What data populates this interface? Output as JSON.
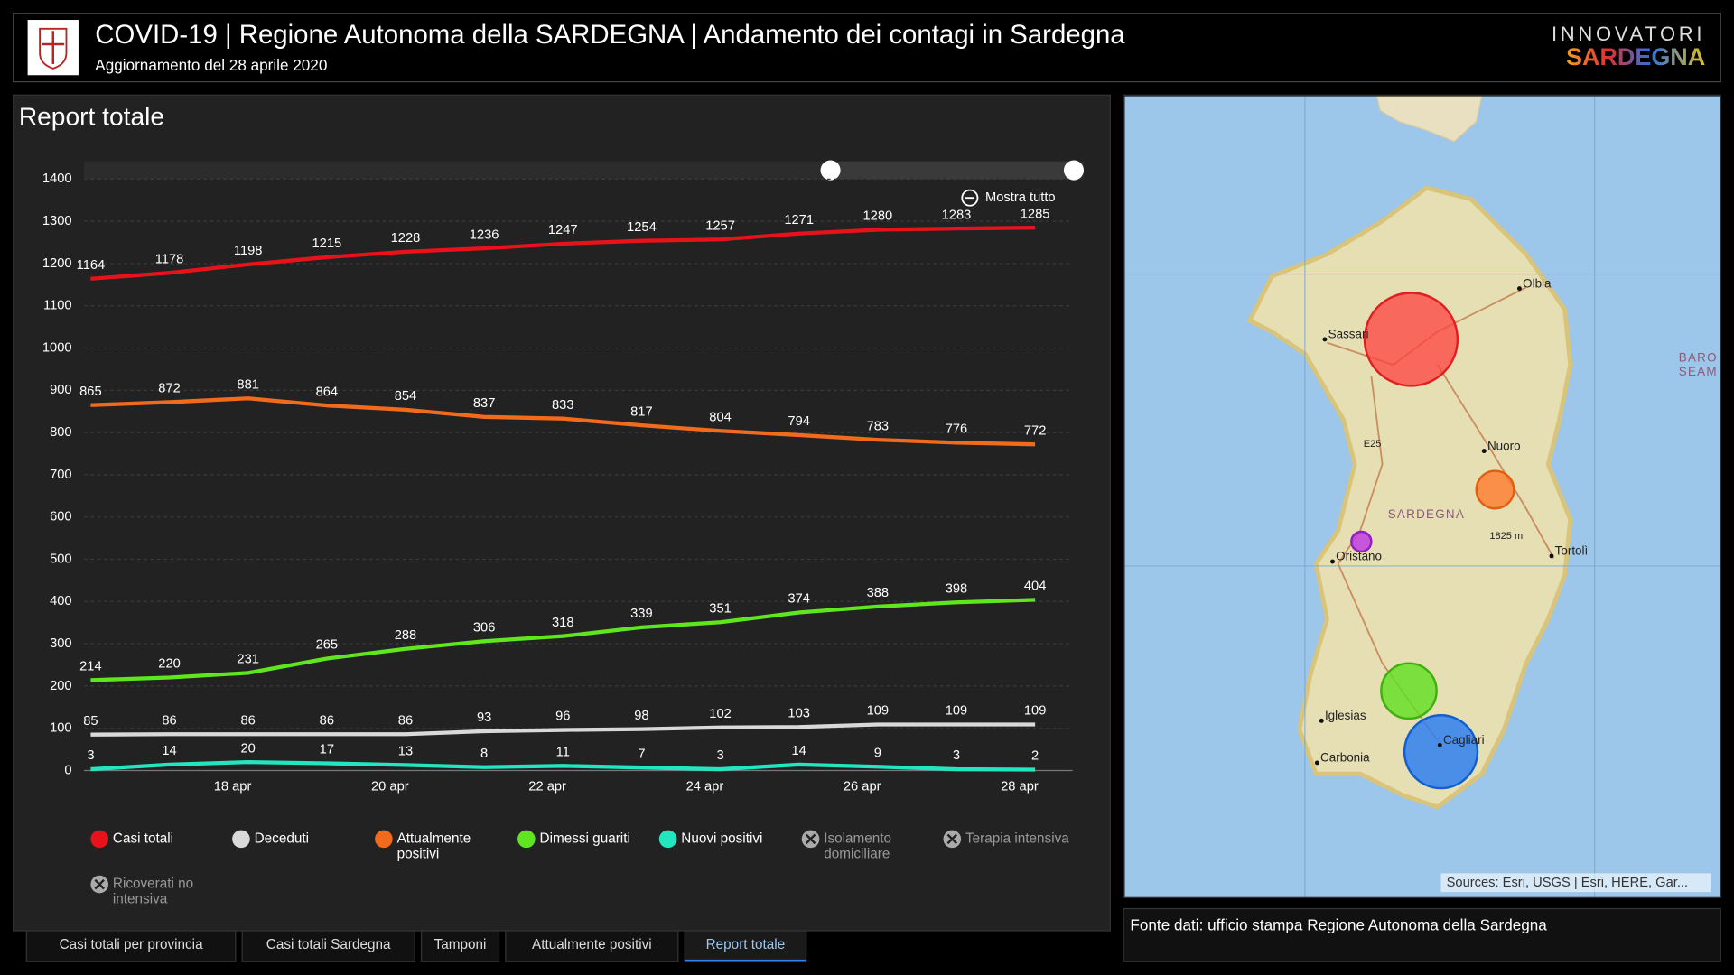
{
  "header": {
    "title": "COVID-19 | Regione Autonoma della SARDEGNA | Andamento dei contagi in Sardegna",
    "subtitle": "Aggiornamento del 28 aprile 2020",
    "brand_top": "INNOVATORI",
    "brand_bottom": "SARDEGNA"
  },
  "panel_title": "Report totale",
  "zoom_button": "Mostra tutto",
  "chart_data": {
    "type": "line",
    "categories": [
      null,
      null,
      "18 apr",
      null,
      "20 apr",
      null,
      "22 apr",
      null,
      "24 apr",
      null,
      "26 apr",
      null,
      "28 apr"
    ],
    "series": [
      {
        "name": "Casi totali",
        "color": "#e8121b",
        "values": [
          1164,
          1178,
          1198,
          1215,
          1228,
          1236,
          1247,
          1254,
          1257,
          1271,
          1280,
          1283,
          1285
        ]
      },
      {
        "name": "Deceduti",
        "color": "#d9d9d9",
        "values": [
          85,
          86,
          86,
          86,
          86,
          93,
          96,
          98,
          102,
          103,
          109,
          109,
          109
        ]
      },
      {
        "name": "Attualmente positivi",
        "color": "#f26a1b",
        "values": [
          865,
          872,
          881,
          864,
          854,
          837,
          833,
          817,
          804,
          794,
          783,
          776,
          772
        ]
      },
      {
        "name": "Dimessi guariti",
        "color": "#5fe61e",
        "values": [
          214,
          220,
          231,
          265,
          288,
          306,
          318,
          339,
          351,
          374,
          388,
          398,
          404
        ]
      },
      {
        "name": "Nuovi positivi",
        "color": "#22e6c0",
        "values": [
          3,
          14,
          20,
          17,
          13,
          8,
          11,
          7,
          3,
          14,
          9,
          3,
          2
        ]
      }
    ],
    "legend_inactive": [
      "Isolamento domiciliare",
      "Terapia intensiva",
      "Ricoverati no intensiva"
    ],
    "ylim": [
      0,
      1400
    ],
    "yticks": [
      0,
      100,
      200,
      300,
      400,
      500,
      600,
      700,
      800,
      900,
      1000,
      1100,
      1200,
      1300,
      1400
    ],
    "grid": true
  },
  "map": {
    "labels": [
      "Olbia",
      "Sassari",
      "Nuoro",
      "SARDEGNA",
      "Oristano",
      "Tortolì",
      "Iglesias",
      "Carbonia",
      "Cagliari",
      "E25",
      "1825 m",
      "BARO",
      "SEAM"
    ],
    "attribution": "Sources: Esri, USGS | Esri, HERE, Gar..."
  },
  "source_note": "Fonte dati: ufficio stampa Regione Autonoma della Sardegna",
  "tabs": [
    "Casi totali per provincia",
    "Casi totali Sardegna",
    "Tamponi",
    "Attualmente positivi",
    "Report totale"
  ],
  "active_tab": 4
}
